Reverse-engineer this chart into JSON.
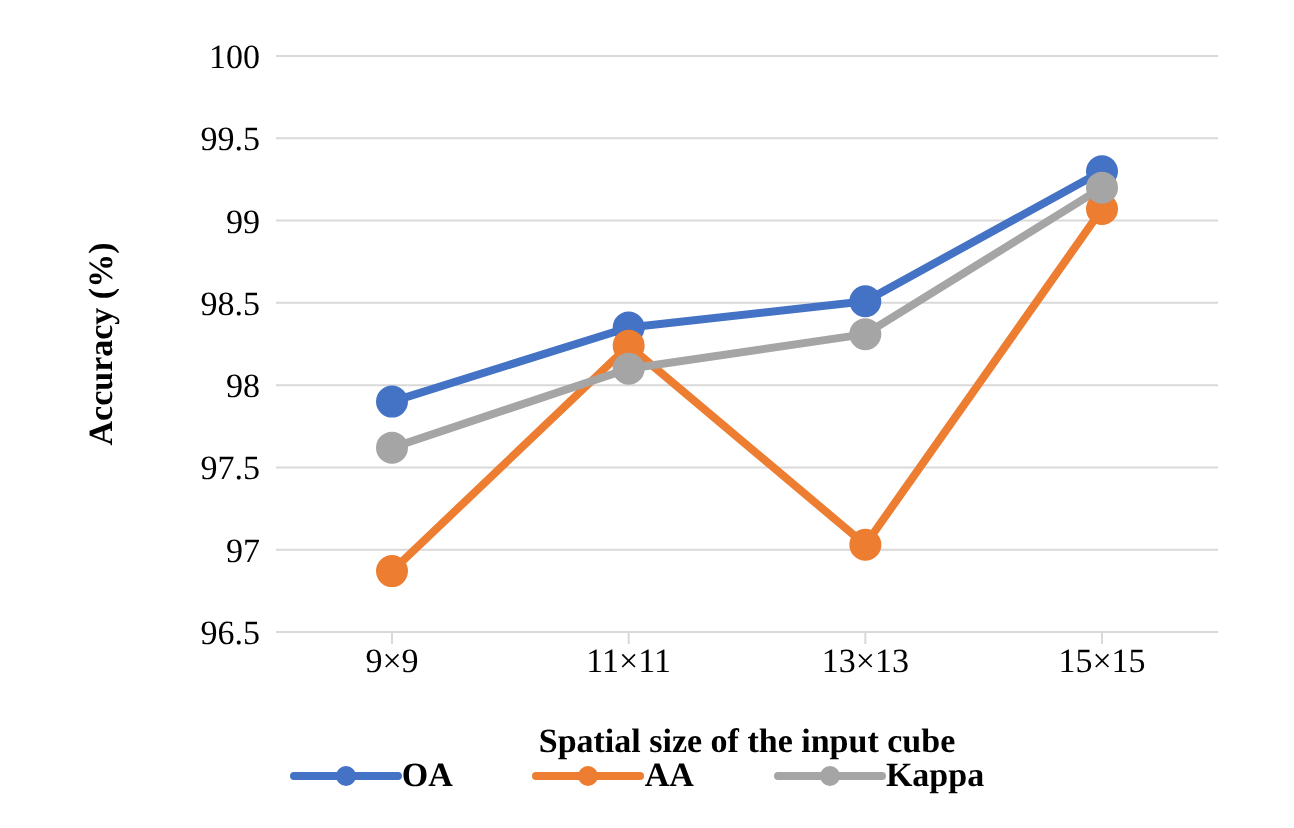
{
  "chart_data": {
    "type": "line",
    "xlabel": "Spatial size of the input cube",
    "ylabel": "Accuracy (%)",
    "categories": [
      "9×9",
      "11×11",
      "13×13",
      "15×15"
    ],
    "series": [
      {
        "name": "OA",
        "color": "#4472c4",
        "values": [
          97.9,
          98.35,
          98.51,
          99.3
        ]
      },
      {
        "name": "AA",
        "color": "#ed7d31",
        "values": [
          96.87,
          98.24,
          97.03,
          99.07
        ]
      },
      {
        "name": "Kappa",
        "color": "#a5a5a5",
        "values": [
          97.62,
          98.1,
          98.31,
          99.2
        ]
      }
    ],
    "ylim": [
      96.5,
      100
    ],
    "yticks": [
      96.5,
      97,
      97.5,
      98,
      98.5,
      99,
      99.5,
      100
    ],
    "grid": "y",
    "legend": "bottom",
    "marker": "circle",
    "line_style": "solid"
  }
}
